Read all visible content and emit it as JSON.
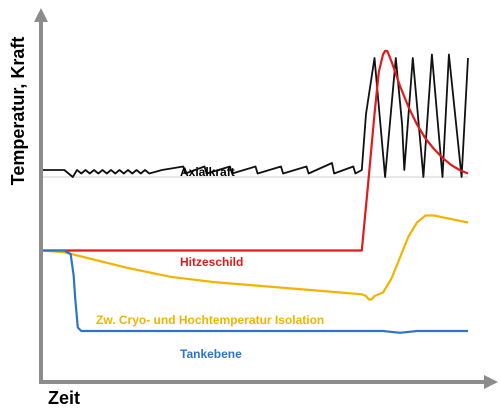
{
  "chart_data": {
    "type": "line",
    "title": "",
    "xlabel": "Zeit",
    "ylabel": "Temperatur, Kraft",
    "xlim": [
      0,
      100
    ],
    "ylim": [
      0,
      100
    ],
    "grid": false,
    "legend": "inline",
    "series": [
      {
        "name": "Axialkraft",
        "color": "#111111",
        "points": [
          [
            0,
            60
          ],
          [
            5,
            60
          ],
          [
            7,
            58
          ],
          [
            8,
            60
          ],
          [
            9,
            59
          ],
          [
            10,
            60
          ],
          [
            11,
            59
          ],
          [
            12,
            60
          ],
          [
            13,
            59
          ],
          [
            14,
            60
          ],
          [
            15,
            59
          ],
          [
            16,
            60
          ],
          [
            17,
            59
          ],
          [
            18,
            60
          ],
          [
            19,
            59
          ],
          [
            20,
            60
          ],
          [
            21,
            59
          ],
          [
            22,
            60
          ],
          [
            23,
            59
          ],
          [
            24,
            60
          ],
          [
            25,
            59
          ],
          [
            28,
            60
          ],
          [
            33,
            61
          ],
          [
            33.5,
            59
          ],
          [
            38,
            61
          ],
          [
            38.5,
            59
          ],
          [
            44,
            61
          ],
          [
            44.5,
            59
          ],
          [
            50,
            61
          ],
          [
            50.5,
            59
          ],
          [
            56,
            61
          ],
          [
            56.5,
            59
          ],
          [
            62,
            61
          ],
          [
            62.5,
            59
          ],
          [
            68,
            62
          ],
          [
            68.5,
            59
          ],
          [
            73,
            61
          ],
          [
            73.5,
            59
          ],
          [
            75,
            60
          ],
          [
            76,
            76
          ],
          [
            78,
            92
          ],
          [
            80.5,
            58
          ],
          [
            83,
            92
          ],
          [
            84.5,
            73
          ],
          [
            85,
            60
          ],
          [
            87,
            92
          ],
          [
            89.5,
            58
          ],
          [
            91.5,
            93
          ],
          [
            94,
            58
          ],
          [
            95.5,
            93
          ],
          [
            98.5,
            58
          ],
          [
            100,
            92
          ]
        ]
      },
      {
        "name": "Hitzeschild",
        "color": "#e11b1b",
        "points": [
          [
            0,
            37
          ],
          [
            75,
            37
          ],
          [
            76.5,
            56
          ],
          [
            78,
            76
          ],
          [
            79,
            88
          ],
          [
            80,
            93
          ],
          [
            80.5,
            94
          ],
          [
            81,
            94
          ],
          [
            82,
            91
          ],
          [
            84,
            84
          ],
          [
            86,
            78
          ],
          [
            88,
            73
          ],
          [
            90,
            69
          ],
          [
            92,
            66
          ],
          [
            94,
            63.5
          ],
          [
            96,
            61.5
          ],
          [
            98,
            60
          ],
          [
            100,
            59
          ]
        ]
      },
      {
        "name": "Zw. Cryo- und Hochtemperatur Isolation",
        "color": "#f2b400",
        "points": [
          [
            0,
            37
          ],
          [
            5,
            36.5
          ],
          [
            10,
            35
          ],
          [
            20,
            32
          ],
          [
            30,
            29.5
          ],
          [
            40,
            28
          ],
          [
            50,
            27
          ],
          [
            60,
            26
          ],
          [
            70,
            25
          ],
          [
            75,
            24.5
          ],
          [
            76,
            24
          ],
          [
            76.7,
            23
          ],
          [
            77.3,
            23
          ],
          [
            78,
            24
          ],
          [
            80,
            25
          ],
          [
            82,
            29
          ],
          [
            84,
            35
          ],
          [
            86,
            41
          ],
          [
            88,
            45
          ],
          [
            90,
            47
          ],
          [
            92,
            47
          ],
          [
            94,
            46.5
          ],
          [
            96,
            46
          ],
          [
            98,
            45.5
          ],
          [
            100,
            45
          ]
        ]
      },
      {
        "name": "Tankebene",
        "color": "#2e75c5",
        "points": [
          [
            0,
            37
          ],
          [
            5,
            37
          ],
          [
            6.5,
            36
          ],
          [
            7.2,
            30
          ],
          [
            7.6,
            23
          ],
          [
            8.2,
            15
          ],
          [
            9,
            14
          ],
          [
            80,
            14
          ],
          [
            84,
            13.5
          ],
          [
            88,
            14
          ],
          [
            100,
            14
          ]
        ]
      }
    ],
    "reference_line": {
      "y": 58,
      "color": "#cfcfcf"
    }
  }
}
